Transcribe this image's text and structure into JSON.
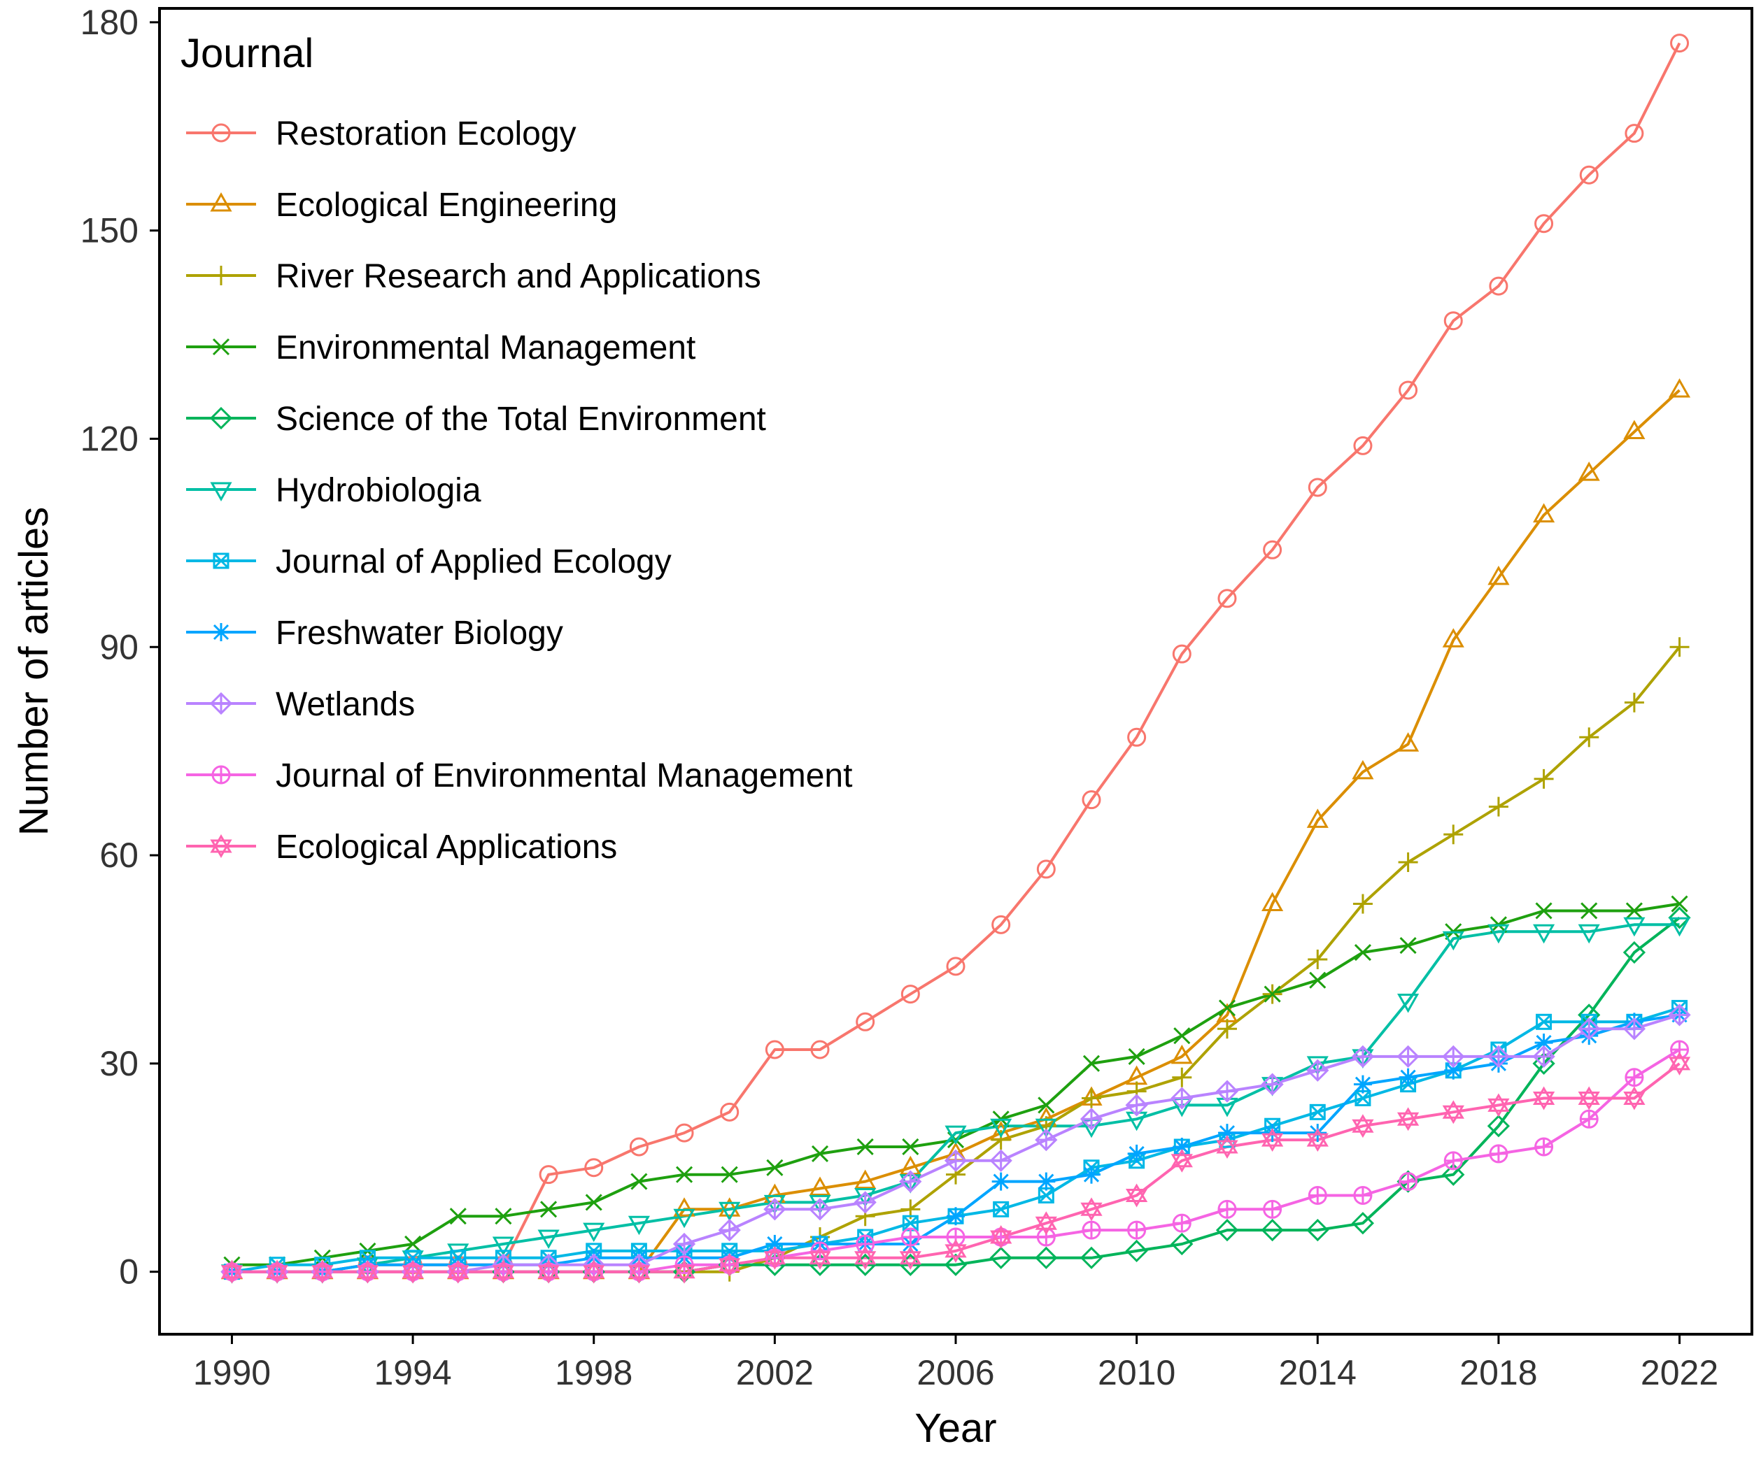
{
  "chart_data": {
    "type": "line",
    "title": "",
    "xlabel": "Year",
    "ylabel": "Number of articles",
    "xlim": [
      1988.4,
      2023.6
    ],
    "ylim": [
      -9,
      182
    ],
    "x_ticks": [
      1990,
      1994,
      1998,
      2002,
      2006,
      2010,
      2014,
      2018,
      2022
    ],
    "y_ticks": [
      0,
      30,
      60,
      90,
      120,
      150,
      180
    ],
    "grid": false,
    "legend": {
      "title": "Journal",
      "placement": "top-left"
    },
    "x": [
      1990,
      1991,
      1992,
      1993,
      1994,
      1995,
      1996,
      1997,
      1998,
      1999,
      2000,
      2001,
      2002,
      2003,
      2004,
      2005,
      2006,
      2007,
      2008,
      2009,
      2010,
      2011,
      2012,
      2013,
      2014,
      2015,
      2016,
      2017,
      2018,
      2019,
      2020,
      2021,
      2022
    ],
    "series": [
      {
        "name": "Restoration Ecology",
        "color": "#F8766D",
        "marker": "circle",
        "values": [
          0,
          0,
          0,
          1,
          1,
          1,
          1,
          14,
          15,
          18,
          20,
          23,
          32,
          32,
          36,
          40,
          44,
          50,
          58,
          68,
          77,
          89,
          97,
          104,
          113,
          119,
          127,
          137,
          142,
          151,
          158,
          164,
          177
        ]
      },
      {
        "name": "Ecological Engineering",
        "color": "#DB8E00",
        "marker": "triangle-up",
        "values": [
          0,
          0,
          0,
          0,
          0,
          0,
          0,
          0,
          0,
          0,
          9,
          9,
          11,
          12,
          13,
          15,
          17,
          20,
          22,
          25,
          28,
          31,
          37,
          53,
          65,
          72,
          76,
          91,
          100,
          109,
          115,
          121,
          127
        ]
      },
      {
        "name": "River Research and Applications",
        "color": "#AEA200",
        "marker": "plus",
        "values": [
          0,
          0,
          0,
          0,
          0,
          0,
          0,
          0,
          0,
          0,
          0,
          0,
          2,
          5,
          8,
          9,
          14,
          19,
          21,
          25,
          26,
          28,
          35,
          40,
          45,
          53,
          59,
          63,
          67,
          71,
          77,
          82,
          90
        ]
      },
      {
        "name": "Environmental Management",
        "color": "#1EA00F",
        "marker": "x",
        "values": [
          1,
          1,
          2,
          3,
          4,
          8,
          8,
          9,
          10,
          13,
          14,
          14,
          15,
          17,
          18,
          18,
          19,
          22,
          24,
          30,
          31,
          34,
          38,
          40,
          42,
          46,
          47,
          49,
          50,
          52,
          52,
          52,
          53
        ]
      },
      {
        "name": "Science of the Total Environment",
        "color": "#00B45A",
        "marker": "diamond",
        "values": [
          0,
          0,
          0,
          0,
          0,
          0,
          0,
          0,
          0,
          0,
          0,
          1,
          1,
          1,
          1,
          1,
          1,
          2,
          2,
          2,
          3,
          4,
          6,
          6,
          6,
          7,
          13,
          14,
          21,
          30,
          37,
          46,
          51
        ]
      },
      {
        "name": "Hydrobiologia",
        "color": "#00BFA5",
        "marker": "triangle-down",
        "values": [
          0,
          0,
          0,
          1,
          2,
          3,
          4,
          5,
          6,
          7,
          8,
          9,
          10,
          10,
          11,
          13,
          20,
          21,
          21,
          21,
          22,
          24,
          24,
          27,
          30,
          31,
          39,
          48,
          49,
          49,
          49,
          50,
          50
        ]
      },
      {
        "name": "Journal of Applied Ecology",
        "color": "#00B8E5",
        "marker": "square-x",
        "values": [
          0,
          1,
          1,
          2,
          2,
          2,
          2,
          2,
          3,
          3,
          3,
          3,
          3,
          4,
          5,
          7,
          8,
          9,
          11,
          15,
          16,
          18,
          19,
          21,
          23,
          25,
          27,
          29,
          32,
          36,
          36,
          36,
          38
        ]
      },
      {
        "name": "Freshwater Biology",
        "color": "#00A5FF",
        "marker": "asterisk",
        "values": [
          0,
          0,
          0,
          1,
          1,
          1,
          1,
          1,
          2,
          2,
          2,
          2,
          4,
          4,
          4,
          4,
          8,
          13,
          13,
          14,
          17,
          18,
          20,
          20,
          20,
          27,
          28,
          29,
          30,
          33,
          34,
          36,
          37
        ]
      },
      {
        "name": "Wetlands",
        "color": "#B983FF",
        "marker": "diamond-plus",
        "values": [
          0,
          0,
          0,
          0,
          0,
          0,
          1,
          1,
          1,
          1,
          4,
          6,
          9,
          9,
          10,
          13,
          16,
          16,
          19,
          22,
          24,
          25,
          26,
          27,
          29,
          31,
          31,
          31,
          31,
          31,
          35,
          35,
          37
        ]
      },
      {
        "name": "Journal of Environmental Management",
        "color": "#F564E3",
        "marker": "circle-plus",
        "values": [
          0,
          0,
          0,
          0,
          0,
          0,
          0,
          0,
          0,
          0,
          1,
          1,
          2,
          3,
          4,
          5,
          5,
          5,
          5,
          6,
          6,
          7,
          9,
          9,
          11,
          11,
          13,
          16,
          17,
          18,
          22,
          28,
          32
        ]
      },
      {
        "name": "Ecological Applications",
        "color": "#FF64B0",
        "marker": "star",
        "values": [
          0,
          0,
          0,
          0,
          0,
          0,
          0,
          0,
          0,
          0,
          0,
          1,
          2,
          2,
          2,
          2,
          3,
          5,
          7,
          9,
          11,
          16,
          18,
          19,
          19,
          21,
          22,
          23,
          24,
          25,
          25,
          25,
          30
        ]
      }
    ]
  }
}
